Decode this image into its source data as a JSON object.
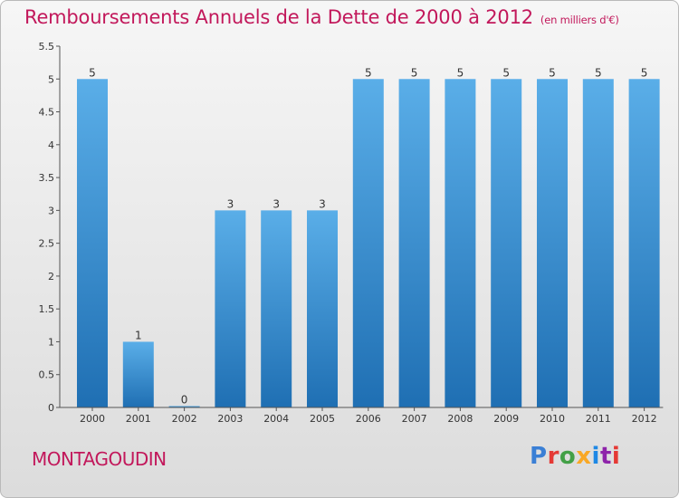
{
  "header": {
    "title": "Remboursements Annuels de la Dette de 2000 à 2012",
    "unit": "(en milliers d'€)"
  },
  "footer": {
    "commune": "MONTAGOUDIN",
    "logo_text": "Proxiti",
    "logo_colors": [
      "#3a7fd5",
      "#e53935",
      "#43a047",
      "#f9a825",
      "#1e88e5",
      "#8e24aa",
      "#e53935"
    ]
  },
  "colors": {
    "accent": "#c2185b",
    "bar_top": "#5aaee8",
    "bar_bottom": "#1f6fb3",
    "axis": "#555555"
  },
  "chart_data": {
    "type": "bar",
    "categories": [
      "2000",
      "2001",
      "2002",
      "2003",
      "2004",
      "2005",
      "2006",
      "2007",
      "2008",
      "2009",
      "2010",
      "2011",
      "2012"
    ],
    "values": [
      5,
      1,
      0,
      3,
      3,
      3,
      5,
      5,
      5,
      5,
      5,
      5,
      5
    ],
    "data_labels": [
      "5",
      "1",
      "0",
      "3",
      "3",
      "3",
      "5",
      "5",
      "5",
      "5",
      "5",
      "5",
      "5"
    ],
    "ylim": [
      0,
      5.5
    ],
    "yticks": [
      0,
      0.5,
      1,
      1.5,
      2,
      2.5,
      3,
      3.5,
      4,
      4.5,
      5,
      5.5
    ],
    "ytick_labels": [
      "0",
      "0.5",
      "1",
      "1.5",
      "2",
      "2.5",
      "3",
      "3.5",
      "4",
      "4.5",
      "5",
      "5.5"
    ],
    "grid": false,
    "legend": "none"
  }
}
